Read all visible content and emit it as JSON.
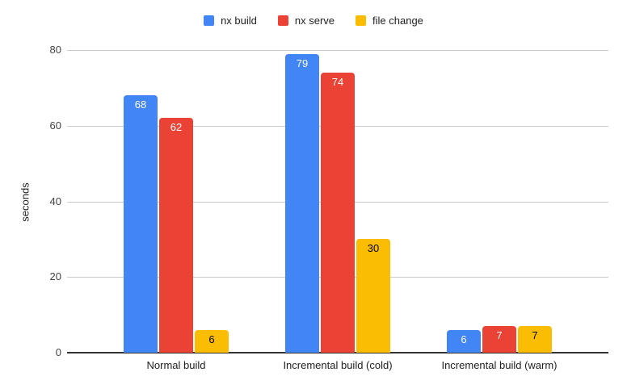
{
  "chart_data": {
    "type": "bar",
    "title": "",
    "xlabel": "",
    "ylabel": "seconds",
    "ylim": [
      0,
      80
    ],
    "yticks": [
      0,
      20,
      40,
      60,
      80
    ],
    "grid": true,
    "legend_position": "top",
    "categories": [
      "Normal build",
      "Incremental build (cold)",
      "Incremental build (warm)"
    ],
    "series": [
      {
        "name": "nx build",
        "color": "#4285F4",
        "label_color": "#ffffff",
        "values": [
          68,
          79,
          6
        ]
      },
      {
        "name": "nx serve",
        "color": "#EA4335",
        "label_color": "#ffffff",
        "values": [
          62,
          74,
          7
        ]
      },
      {
        "name": "file change",
        "color": "#FBBC04",
        "label_color": "#000000",
        "values": [
          6,
          30,
          7
        ]
      }
    ]
  },
  "colors": {
    "background": "#ffffff",
    "gridline": "#cccccc",
    "axis_line": "#333333",
    "tick_text": "#444444",
    "category_text": "#1f1f1f",
    "legend_text": "#202124"
  }
}
